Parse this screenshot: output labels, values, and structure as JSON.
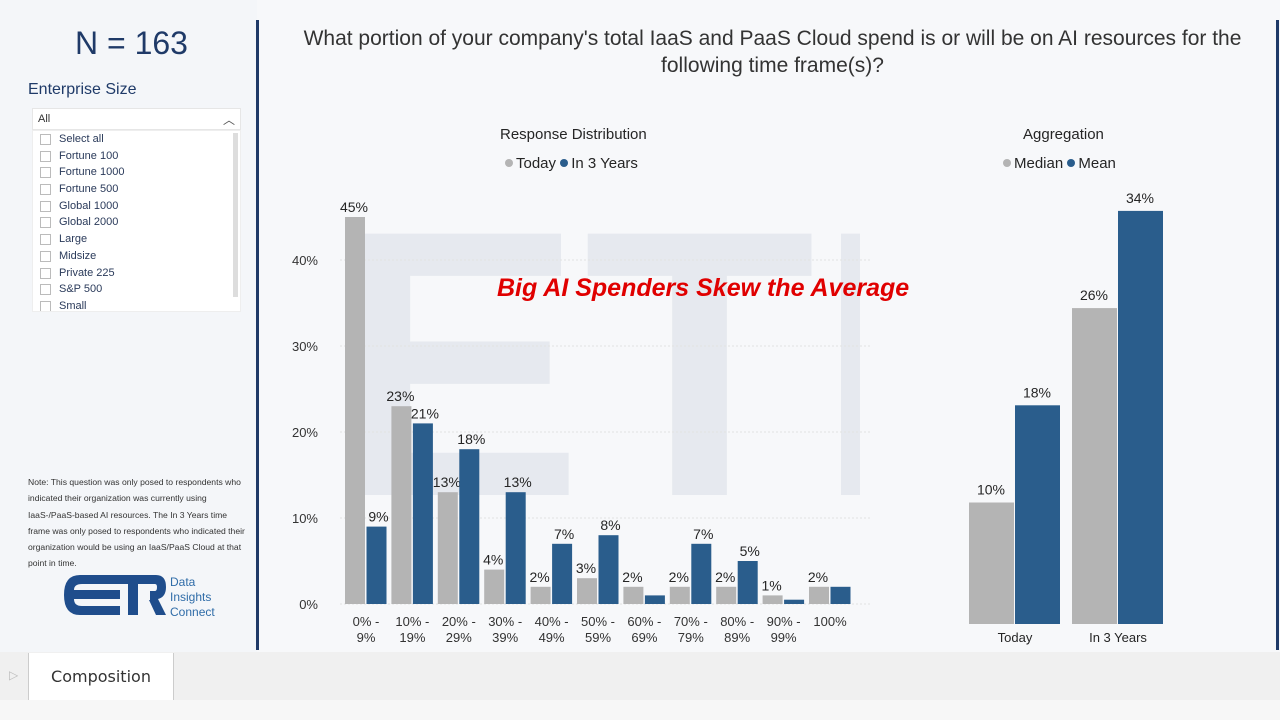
{
  "left_panel": {
    "n_label": "N = 163",
    "enterprise_size_label": "Enterprise Size",
    "dropdown_value": "All",
    "options": [
      "Select all",
      "Fortune 100",
      "Fortune 1000",
      "Fortune 500",
      "Global 1000",
      "Global 2000",
      "Large",
      "Midsize",
      "Private 225",
      "S&P 500",
      "Small"
    ],
    "note": "Note: This question was only posed to respondents who indicated their organization was currently using IaaS-/PaaS-based AI resources. The In 3 Years time frame was only posed to respondents who indicated their organization would be using an IaaS/PaaS Cloud at that point in time.",
    "logo": {
      "letters": "ETR",
      "line1": "Data",
      "line2": "Insights",
      "line3": "Connect"
    }
  },
  "title": "What portion of your company's total IaaS and PaaS Cloud spend is or will be on AI resources for the following time frame(s)?",
  "annotation": "Big AI Spenders Skew the Average",
  "watermark": "ETR DATA INSIGHTS CONNECT",
  "colors": {
    "gray": "#b4b4b4",
    "blue": "#2a5d8c",
    "navy": "#1f3a68",
    "annotation": "#e00000"
  },
  "chart_data": [
    {
      "type": "bar",
      "title": "Response Distribution",
      "categories": [
        "0% - 9%",
        "10% - 19%",
        "20% - 29%",
        "30% - 39%",
        "40% - 49%",
        "50% - 59%",
        "60% - 69%",
        "70% - 79%",
        "80% - 89%",
        "90% - 99%",
        "100%"
      ],
      "series": [
        {
          "name": "Today",
          "values": [
            45,
            23,
            13,
            4,
            2,
            3,
            2,
            2,
            2,
            1,
            2
          ]
        },
        {
          "name": "In 3 Years",
          "values": [
            9,
            21,
            18,
            13,
            7,
            8,
            1,
            7,
            5,
            0.5,
            2
          ]
        }
      ],
      "data_labels": {
        "Today": [
          "45%",
          "23%",
          "13%",
          "4%",
          "2%",
          "3%",
          "2%",
          "2%",
          "2%",
          "1%",
          "2%"
        ],
        "In 3 Years": [
          "9%",
          "21%",
          "18%",
          "13%",
          "7%",
          "8%",
          "",
          "7%",
          "5%",
          "",
          ""
        ]
      },
      "yticks": [
        "0%",
        "10%",
        "20%",
        "30%",
        "40%"
      ],
      "ylim": [
        0,
        47
      ],
      "grid": true,
      "legend": "top"
    },
    {
      "type": "bar",
      "title": "Aggregation",
      "categories": [
        "Today",
        "In 3 Years"
      ],
      "series": [
        {
          "name": "Median",
          "values": [
            10,
            26
          ]
        },
        {
          "name": "Mean",
          "values": [
            18,
            34
          ]
        }
      ],
      "data_labels": {
        "Median": [
          "10%",
          "26%"
        ],
        "Mean": [
          "18%",
          "34%"
        ]
      },
      "legend": "top"
    }
  ],
  "tabs": [
    {
      "label": "Composition"
    }
  ]
}
